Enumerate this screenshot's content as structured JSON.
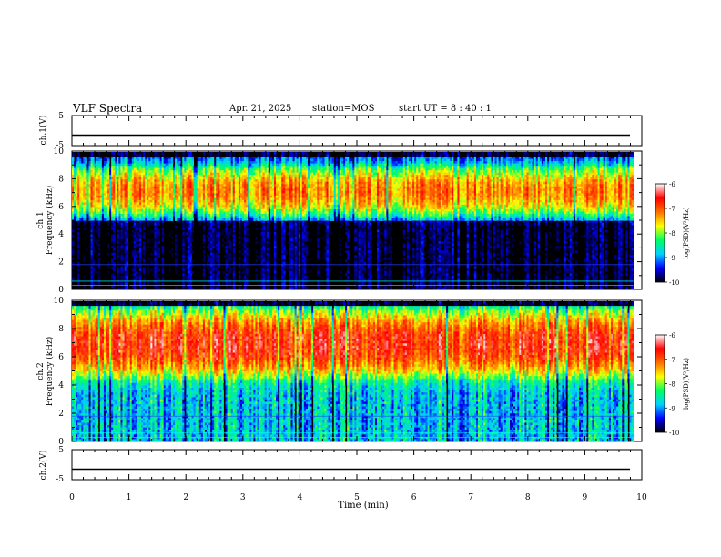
{
  "header": {
    "title": "VLF Spectra",
    "date": "Apr. 21, 2025",
    "station": "station=MOS",
    "start": "start  UT =   8  : 40 : 1"
  },
  "chart_data": [
    {
      "type": "line",
      "panel": "ch1-voltage",
      "ylabel": "ch.1(V)",
      "ylim": [
        -5,
        5
      ],
      "yticks": [
        "5",
        "-5"
      ],
      "baseline": -1.5
    },
    {
      "type": "heatmap",
      "panel": "ch1-spectrogram",
      "ylabel_line1": "ch.1",
      "ylabel_line2": "Frequency (kHz)",
      "ylim": [
        0,
        10
      ],
      "yticks": [
        "0",
        "2",
        "4",
        "6",
        "8",
        "10"
      ],
      "xlim": [
        0,
        9.85
      ],
      "band_low_kHz": 5.0,
      "band_high_kHz": 9.3,
      "peak_log_psd": -7.2,
      "colorbar": {
        "label": "log(PSD)(V²/Hz)",
        "ticks": [
          "-6",
          "-7",
          "-8",
          "-9",
          "-10"
        ],
        "range": [
          -10,
          -6
        ]
      }
    },
    {
      "type": "heatmap",
      "panel": "ch2-spectrogram",
      "ylabel_line1": "ch.2",
      "ylabel_line2": "Frequency (kHz)",
      "ylim": [
        0,
        10
      ],
      "yticks": [
        "0",
        "2",
        "4",
        "6",
        "8",
        "10"
      ],
      "xlim": [
        0,
        9.85
      ],
      "band_low_kHz": 4.2,
      "band_high_kHz": 9.7,
      "peak_log_psd": -6.7,
      "colorbar": {
        "label": "log(PSD)(V²/Hz)",
        "ticks": [
          "-6",
          "-7",
          "-8",
          "-9",
          "-10"
        ],
        "range": [
          -10,
          -6
        ]
      }
    },
    {
      "type": "line",
      "panel": "ch2-voltage",
      "ylabel": "ch.2(V)",
      "ylim": [
        -5,
        5
      ],
      "yticks": [
        "5",
        "-5"
      ],
      "baseline": -1.5,
      "xlabel": "Time (min)",
      "xlim": [
        0,
        10
      ],
      "xticks": [
        "0",
        "1",
        "2",
        "3",
        "4",
        "5",
        "6",
        "7",
        "8",
        "9",
        "10"
      ]
    }
  ],
  "colors": {
    "colormap": [
      "#000000",
      "#0000ff",
      "#00d0ff",
      "#00ff60",
      "#ffff00",
      "#ff7000",
      "#ff0000",
      "#ffffff"
    ]
  }
}
